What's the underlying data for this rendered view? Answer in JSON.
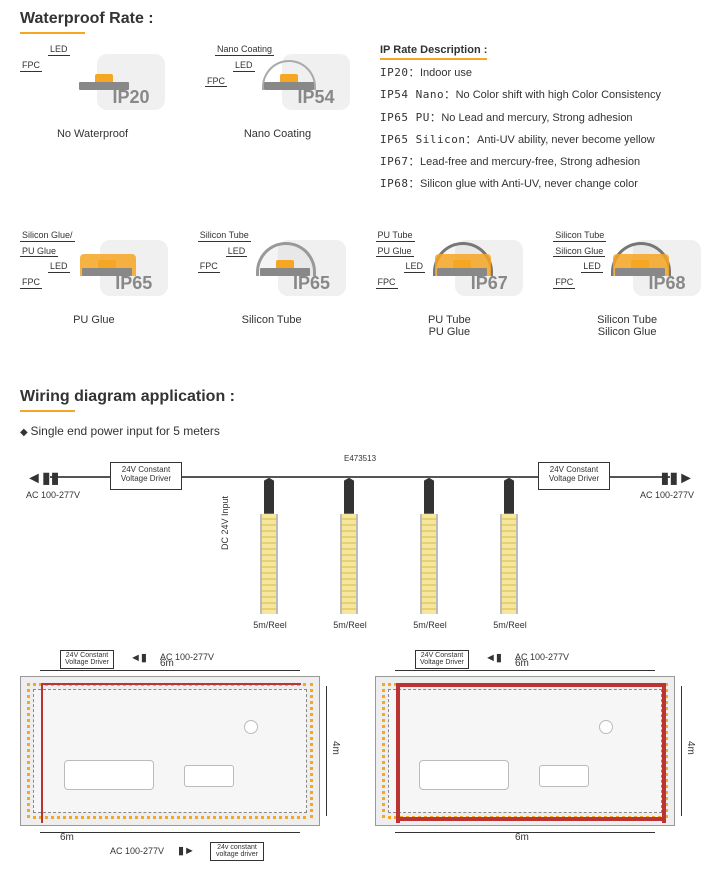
{
  "section1_title": "Waterproof Rate :",
  "ip_desc_title": "IP Rate Description :",
  "ip_desc": [
    {
      "code": "IP20",
      "text": "Indoor use"
    },
    {
      "code": "IP54 Nano",
      "text": "No Color shift with high Color Consistency"
    },
    {
      "code": "IP65 PU",
      "text": "No Lead and mercury, Strong adhesion"
    },
    {
      "code": "IP65 Silicon",
      "text": "Anti-UV ability, never become yellow"
    },
    {
      "code": "IP67",
      "text": "Lead-free and mercury-free, Strong adhesion"
    },
    {
      "code": "IP68",
      "text": "Silicon glue with Anti-UV, never change color"
    }
  ],
  "ip_icons": {
    "ip20": {
      "code": "IP20",
      "caption": "No Waterproof",
      "labels": [
        "LED",
        "FPC"
      ]
    },
    "ip54": {
      "code": "IP54",
      "caption": "Nano Coating",
      "labels": [
        "Nano Coating",
        "LED",
        "FPC"
      ]
    },
    "ip65pu": {
      "code": "IP65",
      "caption": "PU Glue",
      "labels": [
        "Silicon Glue/",
        "PU Glue",
        "LED",
        "FPC"
      ]
    },
    "ip65si": {
      "code": "IP65",
      "caption": "Silicon Tube",
      "labels": [
        "Silicon Tube",
        "LED",
        "FPC"
      ]
    },
    "ip67": {
      "code": "IP67",
      "caption": "PU Tube\nPU Glue",
      "labels": [
        "PU Tube",
        "PU Glue",
        "LED",
        "FPC"
      ]
    },
    "ip68": {
      "code": "IP68",
      "caption": "Silicon Tube\nSilicon Glue",
      "labels": [
        "Silicon Tube",
        "Silicon Glue",
        "LED",
        "FPC"
      ]
    }
  },
  "section2_title": "Wiring diagram application :",
  "wiring_sub": "Single end power input for 5 meters",
  "e_label": "E473513",
  "driver_text": "24V Constant\nVoltage Driver",
  "driver_text_lc": "24v constant\nvoltage driver",
  "ac_label": "AC 100-277V",
  "dc_label": "DC 24V Input",
  "reel_label": "5m/Reel",
  "strip_positions": [
    240,
    320,
    400,
    480
  ],
  "room": {
    "width_label": "6m",
    "height_label": "4m"
  },
  "colors": {
    "accent": "#f5a623",
    "box_bg": "#f0f0f0",
    "code_text": "#888888",
    "wire_red": "#b33333",
    "room_bg": "#eeeeee"
  }
}
